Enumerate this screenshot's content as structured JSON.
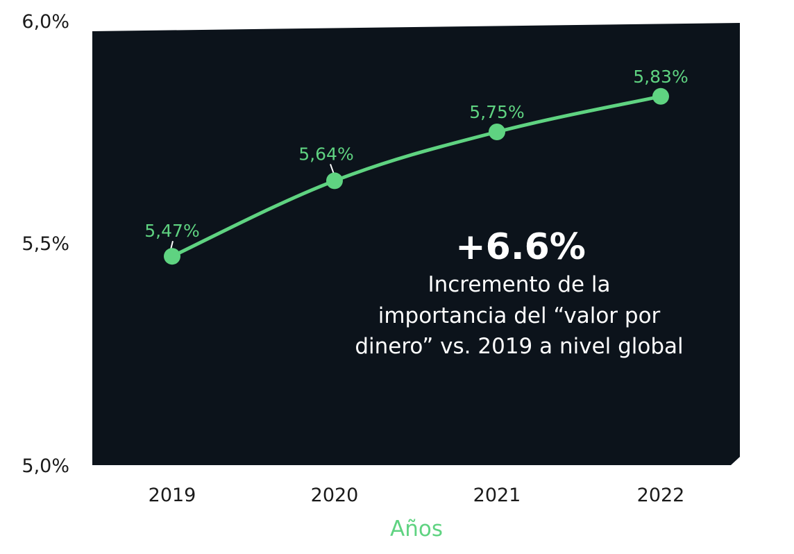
{
  "colors": {
    "plot_background": "#0c131b",
    "series": "#5fd381",
    "axis_text": "#1a1a1a",
    "callout_text": "#ffffff"
  },
  "chart_data": {
    "type": "line",
    "x": [
      "2019",
      "2020",
      "2021",
      "2022"
    ],
    "series": [
      {
        "values": [
          5.47,
          5.64,
          5.75,
          5.83
        ],
        "labels": [
          "5,47%",
          "5,64%",
          "5,75%",
          "5,83%"
        ]
      }
    ],
    "xlabel": "Años",
    "ylabel": "",
    "ylim": [
      5.0,
      6.0
    ],
    "y_ticks": [
      {
        "value": 6.0,
        "label": "6,0%"
      },
      {
        "value": 5.5,
        "label": "5,5%"
      },
      {
        "value": 5.0,
        "label": "5,0%"
      }
    ],
    "grid": false,
    "annotation": {
      "headline": "+6.6%",
      "lines": [
        "Incremento de la",
        "importancia del “valor por",
        "dinero” vs. 2019 a nivel global"
      ]
    }
  }
}
